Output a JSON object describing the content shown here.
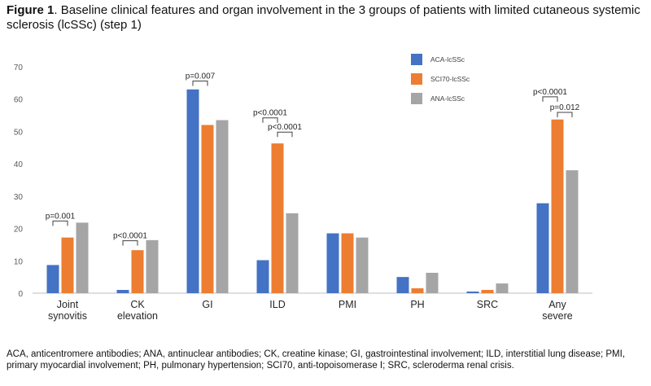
{
  "figure": {
    "label": "Figure 1",
    "title": ". Baseline clinical features and organ involvement in the 3 groups of patients with limited cutaneous systemic sclerosis (lcSSc) (step 1)",
    "caption": "ACA, anticentromere antibodies; ANA, antinuclear antibodies; CK, creatine kinase; GI, gastrointestinal involvement; ILD, interstitial lung disease; PMI, primary myocardial involvement; PH, pulmonary hypertension; SCI70, anti-topoisomerase I; SRC, scleroderma renal crisis."
  },
  "chart_data": {
    "type": "bar",
    "categories": [
      "Joint synovitis",
      "CK elevation",
      "GI",
      "ILD",
      "PMI",
      "PH",
      "SRC",
      "Any severe"
    ],
    "series": [
      {
        "name": "ACA-lcSSc",
        "color": "#4472C4",
        "values": [
          8.7,
          1.0,
          63,
          10.2,
          18.5,
          5.0,
          0.5,
          27.8
        ]
      },
      {
        "name": "SCI70-lcSSc",
        "color": "#ED7D31",
        "values": [
          17.2,
          13.3,
          52,
          46.3,
          18.5,
          1.5,
          1.0,
          53.7
        ]
      },
      {
        "name": "ANA-lcSSc",
        "color": "#A5A5A5",
        "values": [
          21.8,
          16.4,
          53.5,
          24.7,
          17.2,
          6.3,
          3.0,
          38.0
        ]
      }
    ],
    "ylim": [
      0,
      70
    ],
    "yticks": [
      0,
      10,
      20,
      30,
      40,
      50,
      60,
      70
    ],
    "grid": false,
    "legend_position": "top-right",
    "annotations": [
      {
        "text": "p=0.001",
        "category": 0,
        "from_series": 0,
        "to_series": 1,
        "level": 22.3
      },
      {
        "text": "p<0.0001",
        "category": 1,
        "from_series": 0,
        "to_series": 1,
        "level": 16.2
      },
      {
        "text": "p=0.007",
        "category": 2,
        "from_series": 0,
        "to_series": 1,
        "level": 65.6
      },
      {
        "text": "p<0.0001",
        "category": 3,
        "from_series": 0,
        "to_series": 1,
        "level": 54.2
      },
      {
        "text": "p<0.0001",
        "category": 3,
        "from_series": 1,
        "to_series": 2,
        "level": 49.8
      },
      {
        "text": "p<0.0001",
        "category": 7,
        "from_series": 0,
        "to_series": 1,
        "level": 60.7
      },
      {
        "text": "p=0.012",
        "category": 7,
        "from_series": 1,
        "to_series": 2,
        "level": 55.9
      }
    ]
  }
}
